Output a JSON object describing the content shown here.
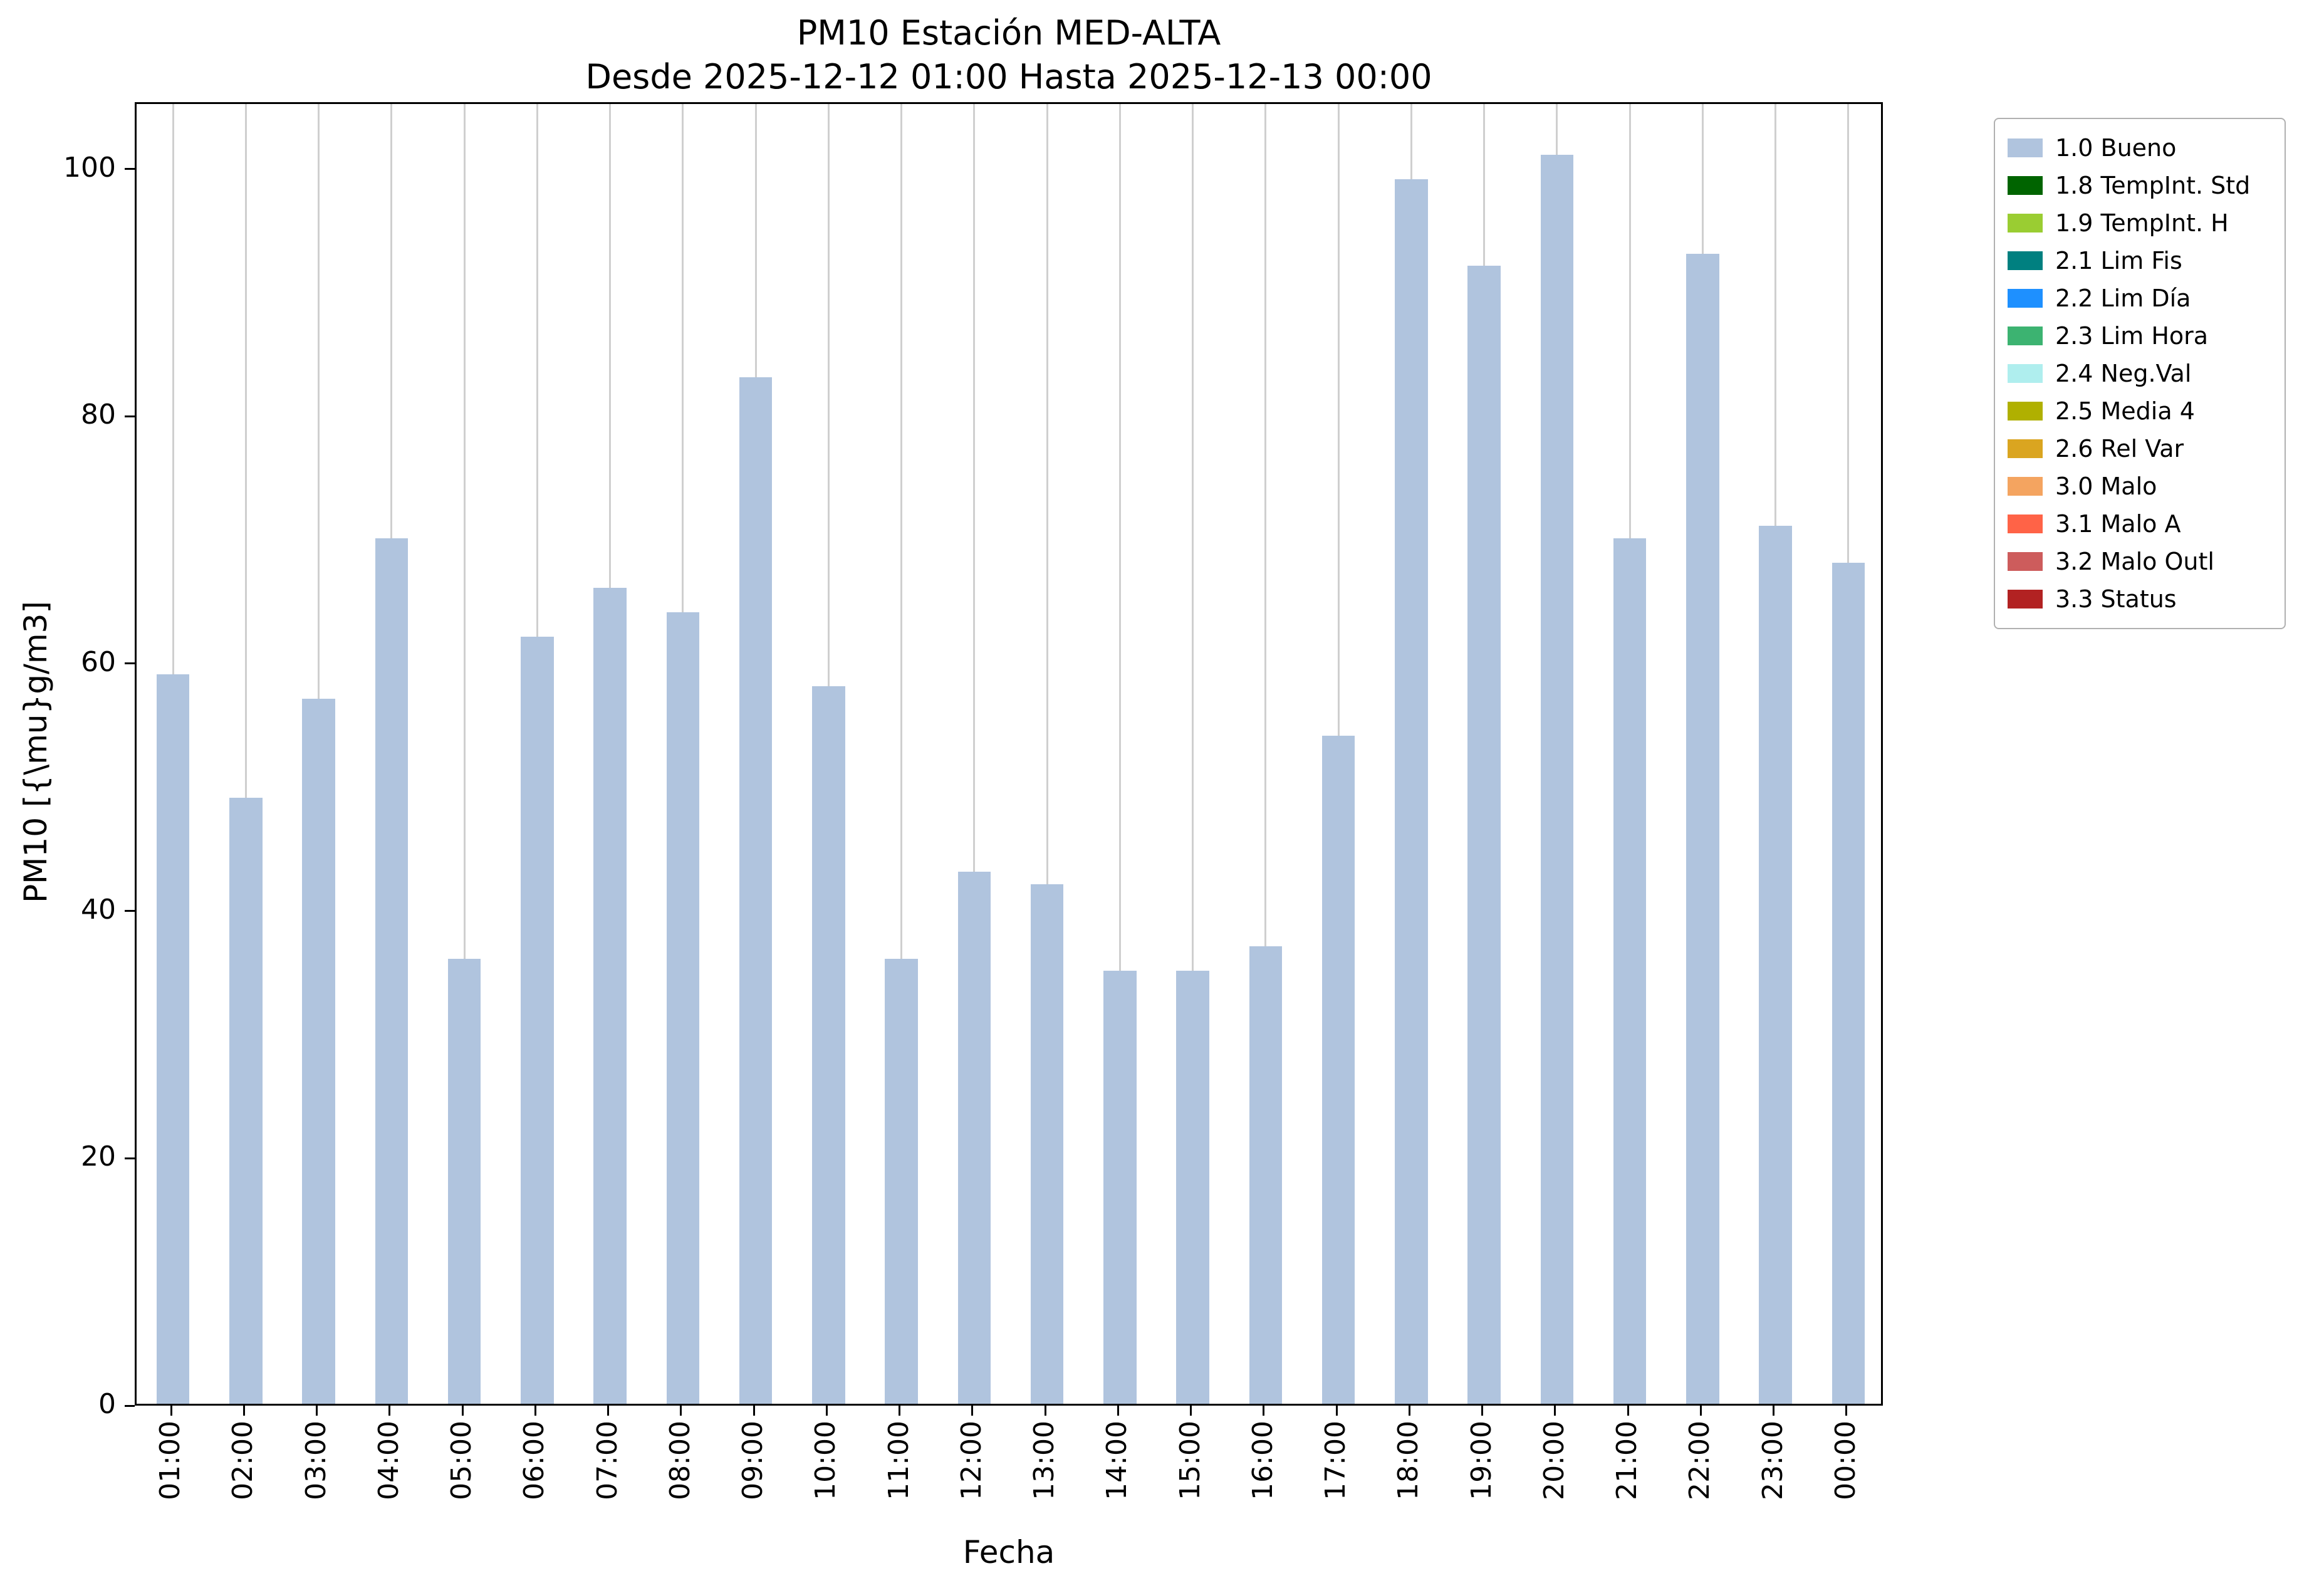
{
  "chart_data": {
    "type": "bar",
    "title": "PM10 Estación MED-ALTA",
    "subtitle": "Desde 2025-12-12 01:00 Hasta 2025-12-13 00:00",
    "xlabel": "Fecha",
    "ylabel": "PM10 [{\\mu}g/m3]",
    "categories": [
      "01:00",
      "02:00",
      "03:00",
      "04:00",
      "05:00",
      "06:00",
      "07:00",
      "08:00",
      "09:00",
      "10:00",
      "11:00",
      "12:00",
      "13:00",
      "14:00",
      "15:00",
      "16:00",
      "17:00",
      "18:00",
      "19:00",
      "20:00",
      "21:00",
      "22:00",
      "23:00",
      "00:00"
    ],
    "values": [
      59,
      49,
      57,
      70,
      36,
      62,
      66,
      64,
      83,
      58,
      36,
      43,
      42,
      35,
      35,
      37,
      54,
      99,
      92,
      101,
      70,
      93,
      71,
      68
    ],
    "yticks": [
      0,
      20,
      40,
      60,
      80,
      100
    ],
    "ylim": [
      0,
      105.4
    ],
    "bar_color": "#b0c4de",
    "grid_color": "#cfcfcf",
    "grid": "vertical",
    "legend_position": "outside-right",
    "legend": [
      {
        "label": "1.0 Bueno",
        "color": "#b0c4de"
      },
      {
        "label": "1.8 TempInt. Std",
        "color": "#006400"
      },
      {
        "label": "1.9 TempInt. H",
        "color": "#9acd32"
      },
      {
        "label": "2.1 Lim Fis",
        "color": "#008080"
      },
      {
        "label": "2.2 Lim Día",
        "color": "#1e90ff"
      },
      {
        "label": "2.3 Lim Hora",
        "color": "#3cb371"
      },
      {
        "label": "2.4 Neg.Val",
        "color": "#afeeee"
      },
      {
        "label": "2.5 Media 4",
        "color": "#b0b000"
      },
      {
        "label": "2.6 Rel Var",
        "color": "#daa520"
      },
      {
        "label": "3.0 Malo",
        "color": "#f4a460"
      },
      {
        "label": "3.1 Malo A",
        "color": "#ff6347"
      },
      {
        "label": "3.2 Malo Outl",
        "color": "#cd5c5c"
      },
      {
        "label": "3.3 Status",
        "color": "#b22222"
      }
    ]
  }
}
